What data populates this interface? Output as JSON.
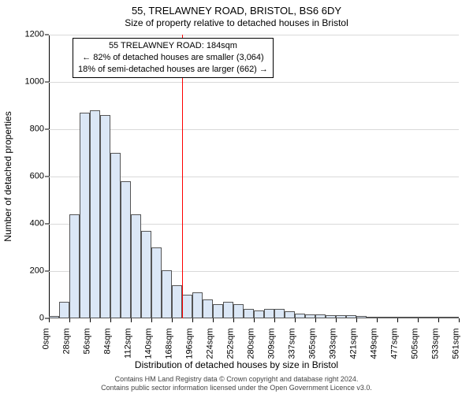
{
  "title": "55, TRELAWNEY ROAD, BRISTOL, BS6 6DY",
  "subtitle": "Size of property relative to detached houses in Bristol",
  "chart": {
    "type": "histogram",
    "y_axis": {
      "title": "Number of detached properties",
      "min": 0,
      "max": 1200,
      "tick_step": 200,
      "ticks": [
        0,
        200,
        400,
        600,
        800,
        1000,
        1200
      ]
    },
    "x_axis": {
      "title": "Distribution of detached houses by size in Bristol",
      "tick_labels": [
        "0sqm",
        "28sqm",
        "56sqm",
        "84sqm",
        "112sqm",
        "140sqm",
        "168sqm",
        "196sqm",
        "224sqm",
        "252sqm",
        "280sqm",
        "309sqm",
        "337sqm",
        "365sqm",
        "393sqm",
        "421sqm",
        "449sqm",
        "477sqm",
        "505sqm",
        "533sqm",
        "561sqm"
      ],
      "tick_fontsize": 11,
      "label_rotation_deg": -90
    },
    "bars": {
      "count": 40,
      "values": [
        10,
        70,
        440,
        870,
        880,
        860,
        700,
        580,
        440,
        370,
        300,
        205,
        140,
        100,
        110,
        80,
        60,
        70,
        60,
        40,
        35,
        40,
        40,
        30,
        20,
        18,
        18,
        15,
        15,
        15,
        10,
        8,
        5,
        5,
        5,
        3,
        3,
        3,
        3,
        3
      ],
      "fill_color": "#dbe7f6",
      "border_color": "#555555",
      "width_ratio": 1.0
    },
    "reference_line": {
      "value_sqm": 184,
      "bar_index_position": 13.0,
      "color": "#ff0000"
    },
    "callout": {
      "line1": "55 TRELAWNEY ROAD: 184sqm",
      "line2": "← 82% of detached houses are smaller (3,064)",
      "line3": "18% of semi-detached houses are larger (662) →"
    },
    "grid": {
      "color": "#d9d9d9"
    },
    "background_color": "#ffffff",
    "title_fontsize": 13,
    "subtitle_fontsize": 12,
    "axis_title_fontsize": 12,
    "tick_fontsize": 11
  },
  "footer": {
    "line1": "Contains HM Land Registry data © Crown copyright and database right 2024.",
    "line2": "Contains public sector information licensed under the Open Government Licence v3.0.",
    "text_color": "#444444"
  }
}
